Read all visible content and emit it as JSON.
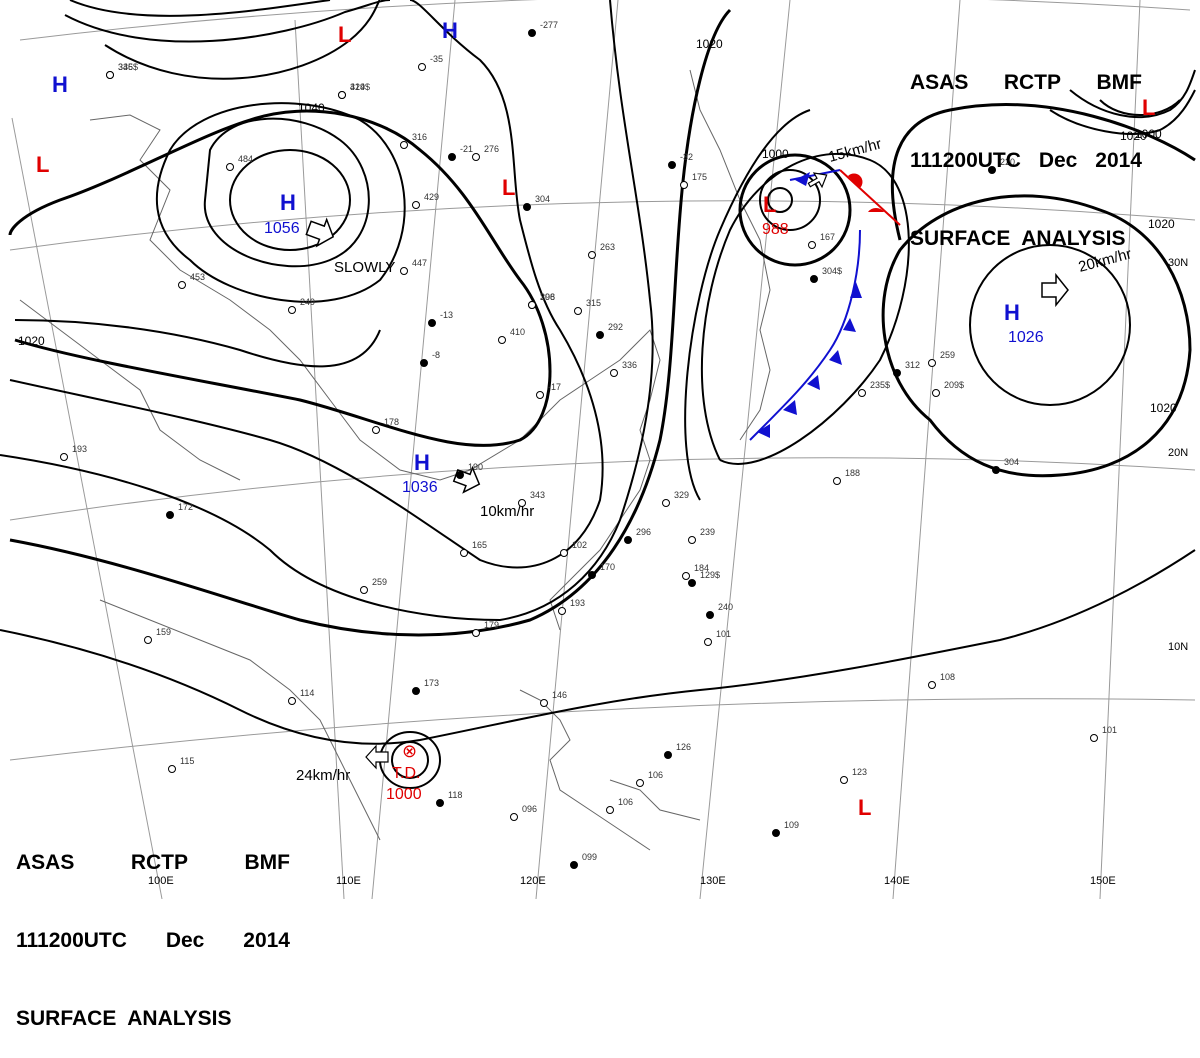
{
  "header": {
    "line1": [
      "ASAS",
      "RCTP",
      "BMF"
    ],
    "line2": [
      "111200UTC",
      "Dec",
      "2014"
    ],
    "line3": "SURFACE  ANALYSIS"
  },
  "colors": {
    "high": "#1010d0",
    "low": "#e00000",
    "isobar": "#000000",
    "grid": "#9a9a9a",
    "warm_front": "#e00000",
    "cold_front": "#1010d0"
  },
  "pressure_centers": [
    {
      "type": "H",
      "value": "1056",
      "color": "high"
    },
    {
      "type": "H",
      "value": "1036",
      "color": "high"
    },
    {
      "type": "H",
      "value": "1026",
      "color": "high"
    },
    {
      "type": "L",
      "value": "988",
      "color": "low"
    },
    {
      "type": "T.D.",
      "value": "1000",
      "color": "low"
    }
  ],
  "extra_symbols": {
    "H": "H",
    "L": "L",
    "TD_mark": "⊗"
  },
  "isobar_labels": [
    "1040",
    "1020",
    "1020",
    "1020",
    "1000",
    "1000",
    "1020",
    "1020",
    "1020"
  ],
  "motion_labels": [
    "SLOWLY",
    "10km/hr",
    "15km/hr",
    "20km/hr",
    "24km/hr"
  ],
  "lat_labels": [
    "30N",
    "20N",
    "10N"
  ],
  "lon_labels": [
    "100E",
    "110E",
    "120E",
    "130E",
    "140E",
    "150E"
  ],
  "station_numbers": [
    "346",
    "314",
    "-35",
    "-277",
    "484",
    "316",
    "-21",
    "276",
    "429",
    "-32",
    "175",
    "167",
    "220",
    "453",
    "447",
    "304",
    "263",
    "249",
    "-13",
    "306",
    "410",
    "292",
    "298",
    "315",
    "-8",
    "-17",
    "336",
    "312",
    "259",
    "178",
    "190",
    "343",
    "329",
    "304",
    "188",
    "193",
    "172",
    "165",
    "102",
    "296",
    "239",
    "184",
    "170",
    "259",
    "193",
    "240",
    "179",
    "159",
    "173",
    "114",
    "146",
    "126",
    "108",
    "115",
    "118",
    "096",
    "106",
    "109",
    "123",
    "101",
    "099",
    "106",
    "101",
    "129$",
    "209$",
    "235$",
    "304$",
    "335$",
    "429$"
  ]
}
